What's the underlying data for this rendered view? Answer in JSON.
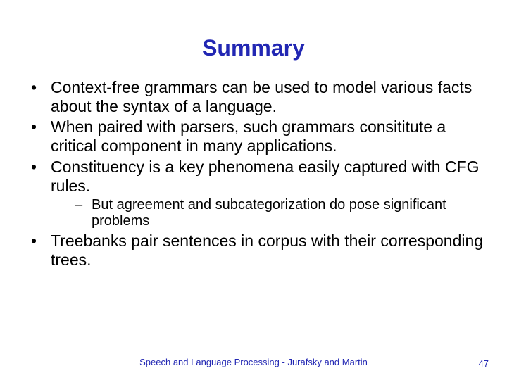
{
  "title": "Summary",
  "title_color": "#2227b3",
  "title_fontsize": 32,
  "body_fontsize": 23,
  "sub_fontsize": 20,
  "background_color": "#ffffff",
  "text_color": "#000000",
  "bullets": [
    {
      "text": "Context-free grammars can be used to model various facts about the syntax of a language."
    },
    {
      "text": "When paired with parsers, such grammars consititute a critical component in many applications."
    },
    {
      "text": "Constituency is a key phenomena easily captured with CFG rules.",
      "sub": [
        {
          "text": "But agreement and subcategorization do pose significant problems"
        }
      ]
    },
    {
      "text": "Treebanks pair sentences in corpus with their corresponding trees."
    }
  ],
  "footer": "Speech and Language Processing - Jurafsky and Martin",
  "page_number": "47",
  "footer_color": "#2227b3"
}
